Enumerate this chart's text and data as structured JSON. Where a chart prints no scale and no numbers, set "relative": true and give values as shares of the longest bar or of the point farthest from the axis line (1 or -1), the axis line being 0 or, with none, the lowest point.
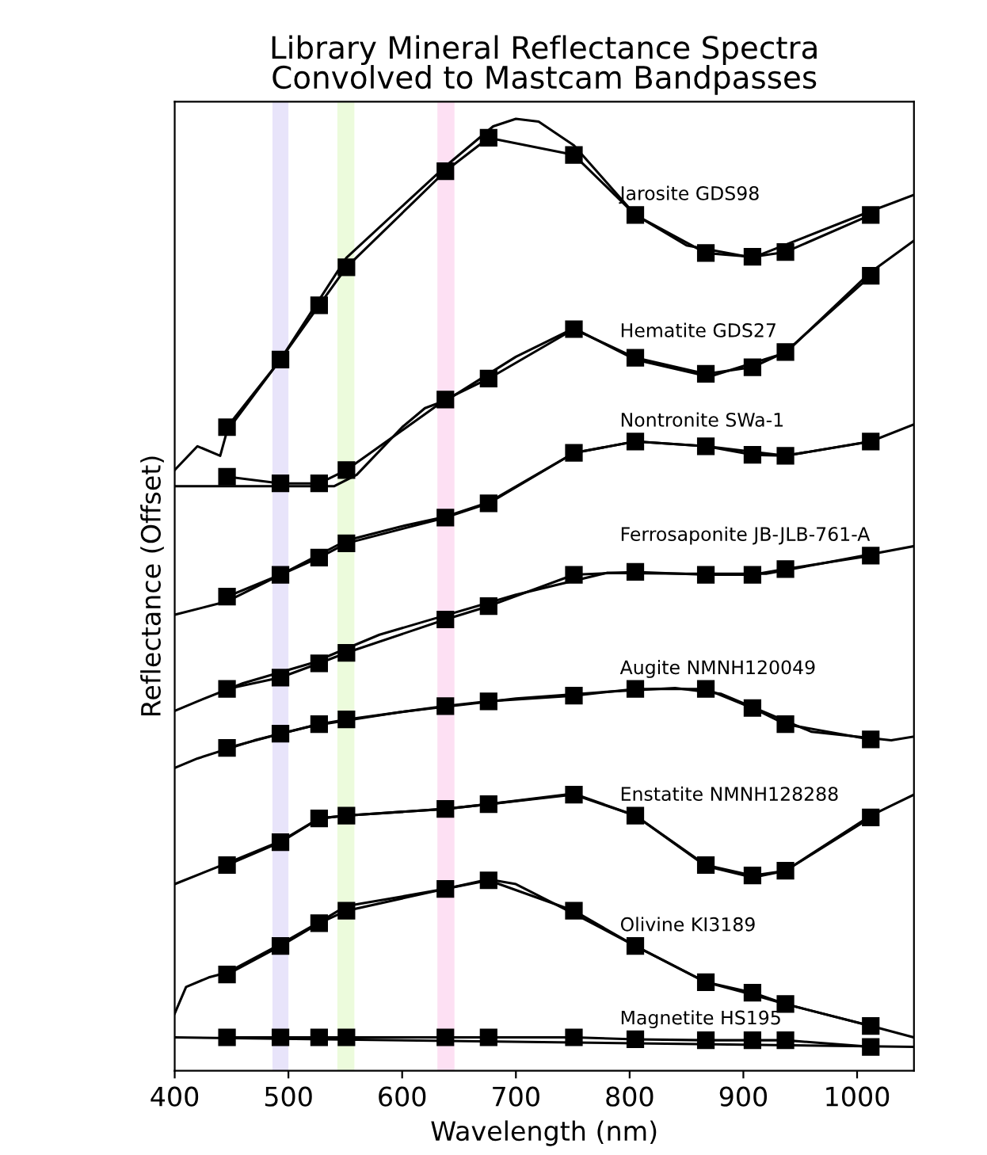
{
  "chart_data": {
    "type": "line",
    "title": "Library Mineral Reflectance Spectra\nConvolved to Mastcam Bandpasses",
    "xlabel": "Wavelength (nm)",
    "ylabel": "Reflectance (Offset)",
    "relative": true,
    "xlim": [
      400,
      1050
    ],
    "xticks": [
      400,
      500,
      600,
      700,
      800,
      900,
      1000
    ],
    "tick_labels": "x",
    "grid": false,
    "legend": false,
    "line_style": "solid",
    "bands": [
      {
        "axis": "x",
        "from": 486,
        "to": 500,
        "color": "#e8e4fa"
      },
      {
        "axis": "x",
        "from": 543,
        "to": 558,
        "color": "#ecfbdc"
      },
      {
        "axis": "x",
        "from": 631,
        "to": 646,
        "color": "#fde0f3"
      }
    ],
    "series": [
      {
        "color": "#000000",
        "marker": "none",
        "x": [
          400,
          420,
          440,
          446,
          493,
          551,
          638,
          680,
          700,
          720,
          751,
          805,
          850,
          908,
          1012,
          1050
        ],
        "values": [
          0.631,
          0.656,
          0.646,
          0.672,
          0.747,
          0.854,
          0.95,
          0.992,
          1.0,
          0.997,
          0.972,
          0.899,
          0.867,
          0.854,
          0.903,
          0.92
        ]
      },
      {
        "name": "Jarosite GDS98",
        "color": "#000000",
        "marker": "square",
        "x": [
          446,
          493,
          527,
          551,
          638,
          676,
          751,
          805,
          867,
          908,
          937,
          1012
        ],
        "values": [
          0.676,
          0.747,
          0.804,
          0.844,
          0.945,
          0.98,
          0.962,
          0.899,
          0.859,
          0.855,
          0.86,
          0.899
        ]
      },
      {
        "color": "#000000",
        "marker": "none",
        "x": [
          400,
          540,
          560,
          600,
          620,
          640,
          700,
          751,
          805,
          870,
          937,
          1012,
          1050
        ],
        "values": [
          0.614,
          0.614,
          0.626,
          0.676,
          0.696,
          0.705,
          0.75,
          0.78,
          0.747,
          0.729,
          0.754,
          0.839,
          0.872
        ]
      },
      {
        "name": "Hematite GDS27",
        "color": "#000000",
        "marker": "square",
        "x": [
          446,
          493,
          527,
          551,
          638,
          676,
          751,
          805,
          867,
          908,
          937,
          1012
        ],
        "values": [
          0.624,
          0.617,
          0.617,
          0.631,
          0.705,
          0.727,
          0.779,
          0.749,
          0.732,
          0.739,
          0.755,
          0.835
        ]
      },
      {
        "color": "#000000",
        "marker": "none",
        "x": [
          400,
          446,
          493,
          551,
          600,
          638,
          676,
          751,
          805,
          867,
          937,
          1012,
          1050
        ],
        "values": [
          0.479,
          0.493,
          0.521,
          0.557,
          0.572,
          0.582,
          0.597,
          0.649,
          0.661,
          0.656,
          0.646,
          0.661,
          0.679
        ]
      },
      {
        "name": "Nontronite SWa-1",
        "color": "#000000",
        "marker": "square",
        "x": [
          446,
          493,
          527,
          551,
          638,
          676,
          751,
          805,
          867,
          908,
          937,
          1012
        ],
        "values": [
          0.498,
          0.521,
          0.539,
          0.554,
          0.581,
          0.596,
          0.649,
          0.661,
          0.656,
          0.647,
          0.646,
          0.661
        ]
      },
      {
        "color": "#000000",
        "marker": "none",
        "x": [
          400,
          420,
          460,
          520,
          580,
          620,
          700,
          780,
          850,
          920,
          970,
          1050
        ],
        "values": [
          0.378,
          0.388,
          0.407,
          0.428,
          0.458,
          0.472,
          0.5,
          0.523,
          0.522,
          0.522,
          0.533,
          0.551
        ]
      },
      {
        "name": "Ferrosaponite JB-JLB-761-A",
        "color": "#000000",
        "marker": "square",
        "x": [
          446,
          493,
          527,
          551,
          638,
          676,
          751,
          805,
          867,
          908,
          937,
          1012
        ],
        "values": [
          0.401,
          0.413,
          0.428,
          0.439,
          0.474,
          0.488,
          0.521,
          0.524,
          0.521,
          0.521,
          0.527,
          0.541
        ]
      },
      {
        "color": "#000000",
        "marker": "none",
        "x": [
          400,
          420,
          470,
          520,
          600,
          700,
          780,
          840,
          880,
          960,
          1030,
          1050
        ],
        "values": [
          0.318,
          0.328,
          0.347,
          0.362,
          0.377,
          0.391,
          0.398,
          0.402,
          0.396,
          0.356,
          0.347,
          0.351
        ]
      },
      {
        "name": "Augite NMNH120049",
        "color": "#000000",
        "marker": "square",
        "x": [
          446,
          493,
          527,
          551,
          638,
          676,
          751,
          805,
          867,
          908,
          937,
          1012
        ],
        "values": [
          0.339,
          0.354,
          0.364,
          0.369,
          0.383,
          0.388,
          0.394,
          0.401,
          0.401,
          0.381,
          0.364,
          0.348
        ]
      },
      {
        "color": "#000000",
        "marker": "none",
        "x": [
          400,
          446,
          493,
          527,
          551,
          638,
          676,
          751,
          805,
          867,
          908,
          937,
          1012,
          1050
        ],
        "values": [
          0.196,
          0.218,
          0.241,
          0.265,
          0.268,
          0.275,
          0.28,
          0.291,
          0.268,
          0.215,
          0.203,
          0.21,
          0.268,
          0.29
        ]
      },
      {
        "name": "Enstatite NMNH128288",
        "color": "#000000",
        "marker": "square",
        "x": [
          446,
          493,
          527,
          551,
          638,
          676,
          751,
          805,
          867,
          908,
          937,
          1012
        ],
        "values": [
          0.216,
          0.24,
          0.265,
          0.268,
          0.275,
          0.28,
          0.29,
          0.268,
          0.216,
          0.205,
          0.21,
          0.266
        ]
      },
      {
        "color": "#000000",
        "marker": "none",
        "x": [
          400,
          410,
          430,
          446,
          493,
          527,
          551,
          600,
          638,
          676,
          700,
          751,
          805,
          867,
          908,
          937,
          1012,
          1050
        ],
        "values": [
          0.06,
          0.088,
          0.098,
          0.103,
          0.133,
          0.156,
          0.173,
          0.183,
          0.191,
          0.201,
          0.196,
          0.165,
          0.131,
          0.093,
          0.08,
          0.07,
          0.047,
          0.035
        ]
      },
      {
        "name": "Olivine KI3189",
        "color": "#000000",
        "marker": "square",
        "x": [
          446,
          493,
          527,
          551,
          638,
          676,
          751,
          805,
          867,
          908,
          937,
          1012
        ],
        "values": [
          0.101,
          0.131,
          0.155,
          0.168,
          0.191,
          0.2,
          0.168,
          0.131,
          0.093,
          0.082,
          0.07,
          0.047
        ]
      },
      {
        "color": "#000000",
        "marker": "none",
        "x": [
          400,
          1050
        ],
        "values": [
          0.035,
          0.025
        ]
      },
      {
        "name": "Magnetite HS195",
        "color": "#000000",
        "marker": "square",
        "x": [
          446,
          493,
          527,
          551,
          638,
          676,
          751,
          805,
          867,
          908,
          937,
          1012
        ],
        "values": [
          0.035,
          0.035,
          0.035,
          0.035,
          0.035,
          0.035,
          0.035,
          0.033,
          0.032,
          0.032,
          0.032,
          0.025
        ]
      }
    ]
  }
}
